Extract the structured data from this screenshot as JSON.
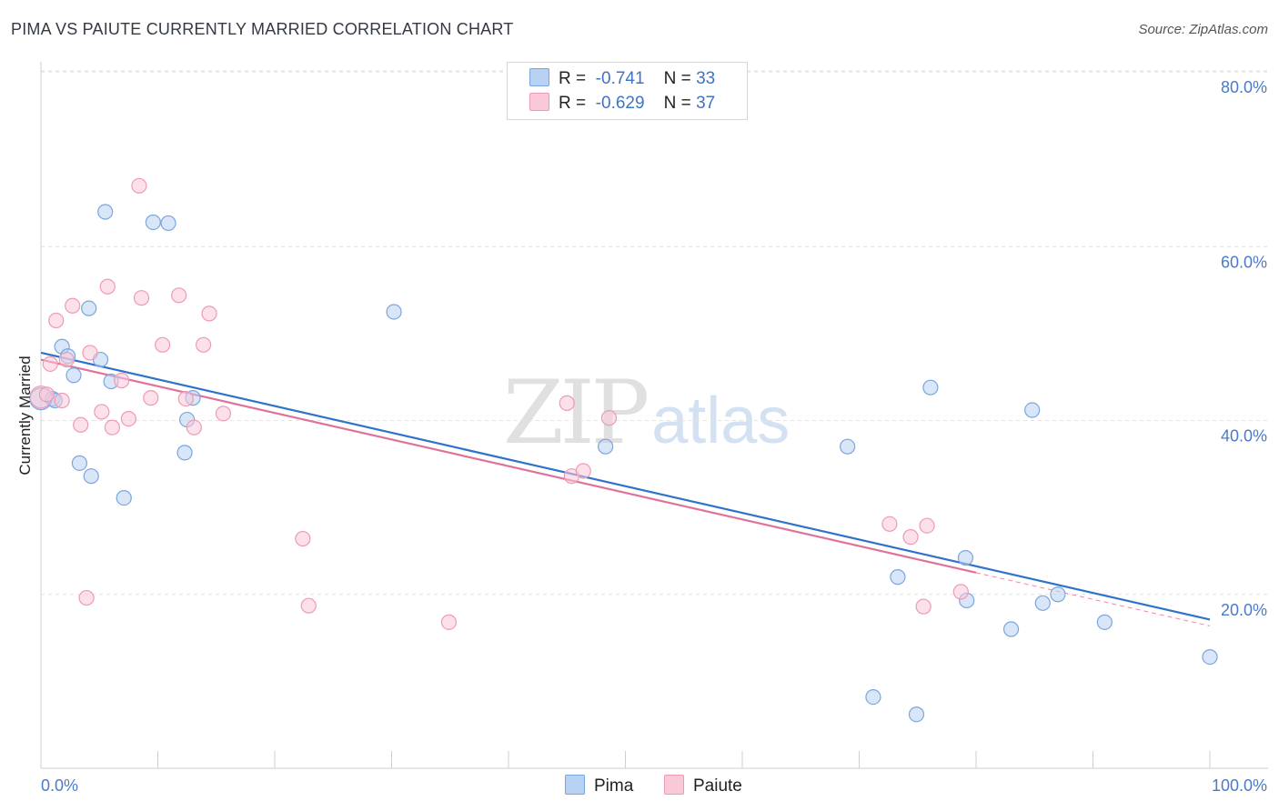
{
  "title": "PIMA VS PAIUTE CURRENTLY MARRIED CORRELATION CHART",
  "source": "Source: ZipAtlas.com",
  "legend": {
    "rows": [
      {
        "r_label": "R =",
        "r_value": "-0.741",
        "n_label": "N =",
        "n_value": "33"
      },
      {
        "r_label": "R =",
        "r_value": "-0.629",
        "n_label": "N =",
        "n_value": "37"
      }
    ]
  },
  "watermark": {
    "zip": "ZIP",
    "atlas": "atlas"
  },
  "colors": {
    "pima_fill": "#b8d2f3",
    "pima_stroke": "#7aa6de",
    "pima_line": "#2f72cc",
    "paiute_fill": "#f9c9d8",
    "paiute_stroke": "#ee9ab5",
    "paiute_line": "#e0729a"
  },
  "chart_data": {
    "type": "scatter",
    "title": "PIMA VS PAIUTE CURRENTLY MARRIED CORRELATION CHART",
    "xlabel": "",
    "ylabel": "Currently Married",
    "xlim": [
      0,
      100
    ],
    "ylim": [
      0,
      80
    ],
    "x_tick_labels": [
      "0.0%",
      "100.0%"
    ],
    "y_ticks": [
      20,
      40,
      60,
      80
    ],
    "y_tick_labels": [
      "20.0%",
      "40.0%",
      "60.0%",
      "80.0%"
    ],
    "grid": true,
    "legend_position": "top-center",
    "series": [
      {
        "name": "Pima",
        "r": -0.741,
        "n": 33,
        "trend": {
          "x": [
            0,
            100
          ],
          "y": [
            47.8,
            17.1
          ]
        },
        "points": [
          [
            0,
            42.5
          ],
          [
            1,
            42.5
          ],
          [
            1.8,
            48.5
          ],
          [
            2.3,
            47.4
          ],
          [
            2.8,
            45.2
          ],
          [
            3.3,
            35.1
          ],
          [
            4.1,
            52.9
          ],
          [
            4.3,
            33.6
          ],
          [
            5.1,
            47.0
          ],
          [
            5.5,
            64.0
          ],
          [
            6.0,
            44.5
          ],
          [
            7.1,
            31.1
          ],
          [
            9.6,
            62.8
          ],
          [
            10.9,
            62.7
          ],
          [
            12.3,
            36.3
          ],
          [
            12.5,
            40.1
          ],
          [
            13.0,
            42.6
          ],
          [
            30.2,
            52.5
          ],
          [
            48.3,
            37.0
          ],
          [
            69.0,
            37.0
          ],
          [
            71.2,
            8.2
          ],
          [
            73.3,
            22.0
          ],
          [
            74.9,
            6.2
          ],
          [
            76.1,
            43.8
          ],
          [
            79.1,
            24.2
          ],
          [
            79.2,
            19.3
          ],
          [
            83.0,
            16.0
          ],
          [
            84.8,
            41.2
          ],
          [
            85.7,
            19.0
          ],
          [
            87.0,
            20.0
          ],
          [
            91.0,
            16.8
          ],
          [
            100,
            12.8
          ],
          [
            1.2,
            42.3
          ]
        ]
      },
      {
        "name": "Paiute",
        "r": -0.629,
        "n": 37,
        "trend": {
          "x": [
            0,
            80
          ],
          "y": [
            47.0,
            22.5
          ]
        },
        "points": [
          [
            0,
            42.7
          ],
          [
            0.8,
            46.5
          ],
          [
            1.3,
            51.5
          ],
          [
            1.8,
            42.3
          ],
          [
            2.2,
            47.0
          ],
          [
            2.7,
            53.2
          ],
          [
            3.4,
            39.5
          ],
          [
            3.9,
            19.6
          ],
          [
            4.2,
            47.8
          ],
          [
            5.2,
            41.0
          ],
          [
            5.7,
            55.4
          ],
          [
            6.1,
            39.2
          ],
          [
            6.9,
            44.6
          ],
          [
            7.5,
            40.2
          ],
          [
            8.4,
            67.0
          ],
          [
            8.6,
            54.1
          ],
          [
            9.4,
            42.6
          ],
          [
            10.4,
            48.7
          ],
          [
            11.8,
            54.4
          ],
          [
            12.4,
            42.5
          ],
          [
            13.1,
            39.2
          ],
          [
            13.9,
            48.7
          ],
          [
            14.4,
            52.3
          ],
          [
            15.6,
            40.8
          ],
          [
            22.4,
            26.4
          ],
          [
            22.9,
            18.7
          ],
          [
            34.9,
            16.8
          ],
          [
            45.0,
            42.0
          ],
          [
            45.4,
            33.6
          ],
          [
            46.4,
            34.2
          ],
          [
            48.6,
            40.3
          ],
          [
            72.6,
            28.1
          ],
          [
            74.4,
            26.6
          ],
          [
            75.5,
            18.6
          ],
          [
            75.8,
            27.9
          ],
          [
            78.7,
            20.3
          ],
          [
            0.5,
            43.0
          ]
        ]
      }
    ]
  }
}
